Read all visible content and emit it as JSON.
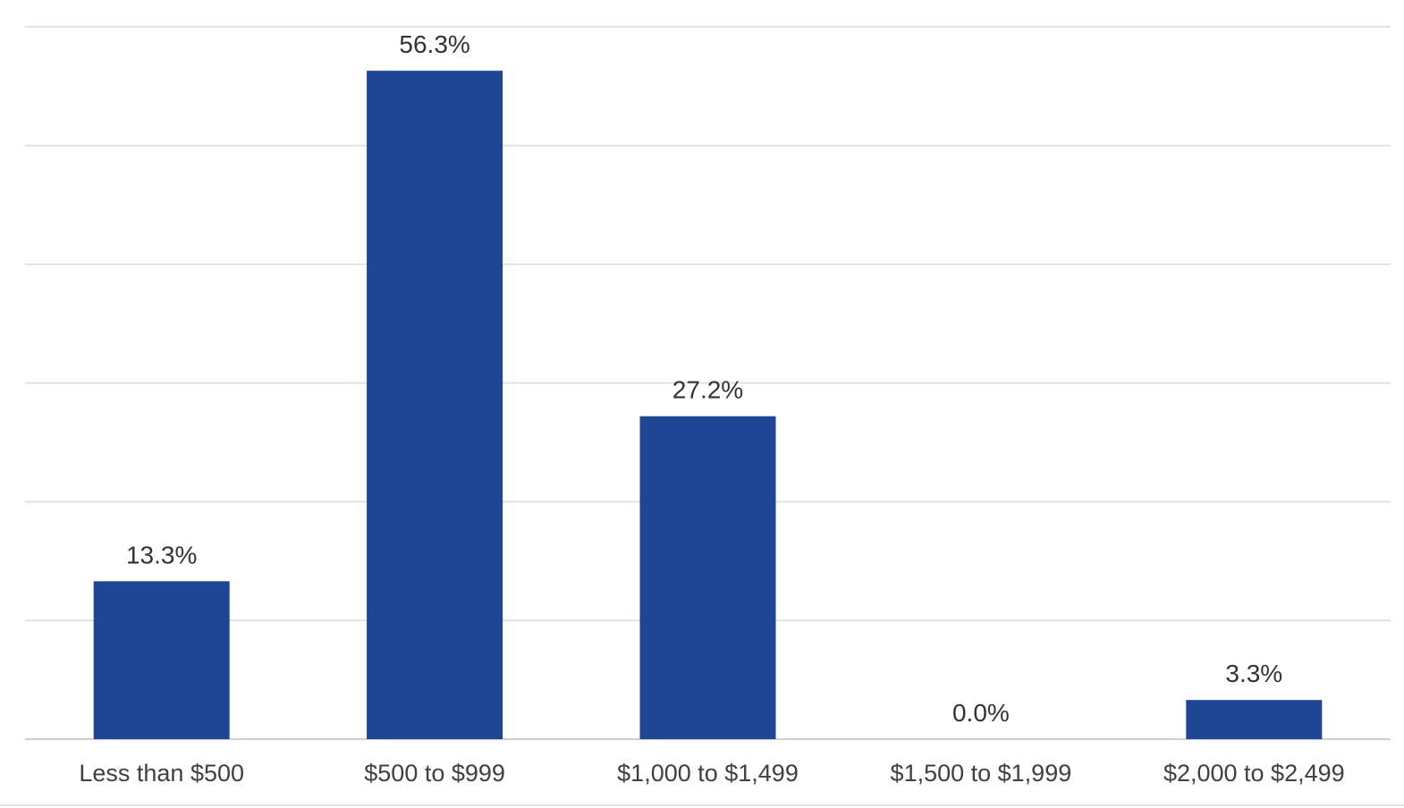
{
  "chart_data": {
    "type": "bar",
    "title": "",
    "xlabel": "",
    "ylabel": "",
    "categories": [
      "Less than $500",
      "$500 to $999",
      "$1,000 to $1,499",
      "$1,500 to $1,999",
      "$2,000 to $2,499"
    ],
    "values": [
      13.3,
      56.3,
      27.2,
      0.0,
      3.3
    ],
    "data_labels": [
      "13.3%",
      "56.3%",
      "27.2%",
      "0.0%",
      "3.3%"
    ],
    "ylim": [
      0,
      60
    ],
    "y_gridlines": [
      0,
      10,
      20,
      30,
      40,
      50,
      60
    ],
    "grid": true,
    "legend": "none",
    "bar_color": "#1f4695"
  }
}
